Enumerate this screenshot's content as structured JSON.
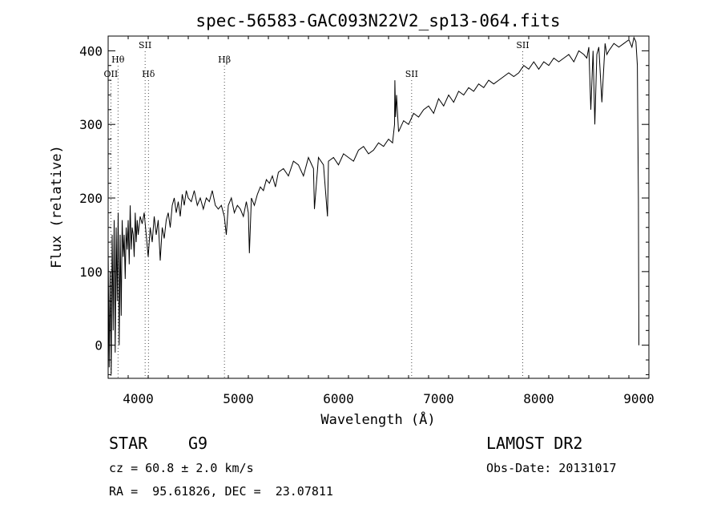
{
  "chart_data": {
    "type": "line",
    "title": "spec-56583-GAC093N22V2_sp13-064.fits",
    "xlabel": "Wavelength (Å)",
    "ylabel": "Flux (relative)",
    "xlim": [
      3700,
      9100
    ],
    "ylim": [
      -45,
      420
    ],
    "xticks": [
      4000,
      5000,
      6000,
      7000,
      8000,
      9000
    ],
    "yticks": [
      0,
      100,
      200,
      300,
      400
    ],
    "series": [
      {
        "values_note_free": true,
        "x": [
          3700,
          3710,
          3720,
          3730,
          3740,
          3750,
          3760,
          3770,
          3780,
          3790,
          3800,
          3810,
          3820,
          3830,
          3840,
          3850,
          3860,
          3870,
          3880,
          3890,
          3900,
          3910,
          3920,
          3930,
          3940,
          3950,
          3960,
          3970,
          3980,
          3990,
          4000,
          4020,
          4040,
          4060,
          4080,
          4100,
          4120,
          4140,
          4160,
          4180,
          4200,
          4220,
          4240,
          4260,
          4280,
          4300,
          4320,
          4340,
          4360,
          4380,
          4400,
          4420,
          4440,
          4460,
          4480,
          4500,
          4530,
          4560,
          4590,
          4620,
          4650,
          4680,
          4710,
          4740,
          4770,
          4800,
          4830,
          4860,
          4880,
          4900,
          4930,
          4960,
          4990,
          5020,
          5050,
          5080,
          5100,
          5110,
          5130,
          5160,
          5190,
          5220,
          5250,
          5280,
          5310,
          5340,
          5370,
          5400,
          5450,
          5500,
          5550,
          5600,
          5650,
          5700,
          5750,
          5760,
          5800,
          5850,
          5890,
          5900,
          5950,
          6000,
          6050,
          6100,
          6150,
          6200,
          6250,
          6300,
          6350,
          6400,
          6450,
          6500,
          6540,
          6560,
          6563,
          6570,
          6580,
          6600,
          6650,
          6700,
          6750,
          6800,
          6850,
          6900,
          6950,
          7000,
          7050,
          7100,
          7150,
          7200,
          7250,
          7300,
          7350,
          7400,
          7450,
          7500,
          7550,
          7600,
          7650,
          7700,
          7750,
          7800,
          7850,
          7900,
          7950,
          8000,
          8050,
          8100,
          8150,
          8200,
          8250,
          8300,
          8350,
          8400,
          8450,
          8480,
          8500,
          8520,
          8542,
          8560,
          8580,
          8600,
          8630,
          8662,
          8680,
          8700,
          8750,
          8800,
          8850,
          8900,
          8930,
          8950,
          8970,
          8985,
          8995,
          9000
        ],
        "y": [
          130,
          -30,
          100,
          -40,
          150,
          20,
          170,
          -10,
          160,
          60,
          180,
          0,
          150,
          40,
          170,
          120,
          150,
          90,
          160,
          130,
          170,
          110,
          190,
          130,
          160,
          150,
          120,
          180,
          140,
          170,
          150,
          175,
          165,
          180,
          150,
          120,
          160,
          140,
          175,
          150,
          170,
          115,
          160,
          145,
          170,
          180,
          160,
          190,
          200,
          180,
          195,
          175,
          205,
          190,
          210,
          200,
          195,
          210,
          190,
          200,
          185,
          200,
          195,
          210,
          190,
          185,
          190,
          175,
          150,
          190,
          200,
          180,
          190,
          185,
          175,
          195,
          180,
          125,
          200,
          190,
          205,
          215,
          210,
          225,
          220,
          230,
          215,
          235,
          240,
          230,
          250,
          245,
          230,
          255,
          240,
          185,
          255,
          245,
          175,
          250,
          255,
          245,
          260,
          255,
          250,
          265,
          270,
          260,
          265,
          275,
          270,
          280,
          275,
          300,
          360,
          310,
          340,
          290,
          305,
          300,
          315,
          310,
          320,
          325,
          315,
          335,
          325,
          340,
          330,
          345,
          340,
          350,
          345,
          355,
          350,
          360,
          355,
          360,
          365,
          370,
          365,
          370,
          380,
          375,
          385,
          375,
          385,
          380,
          390,
          385,
          390,
          395,
          385,
          400,
          395,
          390,
          405,
          320,
          400,
          300,
          395,
          405,
          330,
          410,
          395,
          400,
          410,
          405,
          410,
          415,
          405,
          418,
          412,
          380,
          200,
          0
        ]
      }
    ],
    "lines": [
      {
        "name": "OII",
        "x": 3727,
        "row": 3
      },
      {
        "name": "Hθ",
        "x": 3798,
        "row": 1
      },
      {
        "name": "SII",
        "x": 4069,
        "row": 0
      },
      {
        "name": "Hδ",
        "x": 4102,
        "row": 3
      },
      {
        "name": "Hβ",
        "x": 4861,
        "row": 1
      },
      {
        "name": "SII",
        "x": 6731,
        "row": 3
      },
      {
        "name": "SII",
        "x": 7840,
        "row": 0
      }
    ]
  },
  "info": {
    "class": "STAR",
    "subclass": "G9",
    "survey": "LAMOST DR2",
    "cz": "cz = 60.8 ± 2.0 km/s",
    "obs_date": "Obs-Date: 20131017",
    "coords": "RA =  95.61826, DEC =  23.07811"
  }
}
